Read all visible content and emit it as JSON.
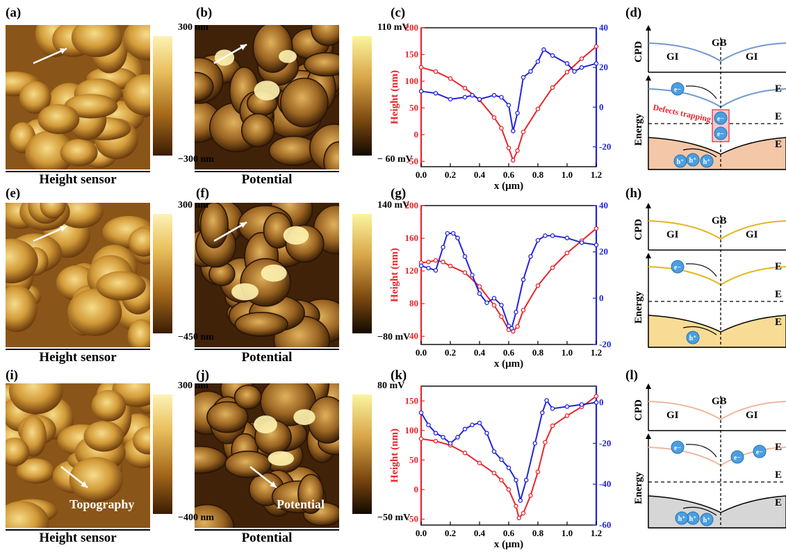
{
  "rows": [
    {
      "afm": {
        "height_letter": "(a)",
        "potential_letter": "(b)",
        "height_top": "300 nm",
        "height_bottom": "−300 nm",
        "potential_top": "110 mV",
        "potential_bottom": "− 60 mV",
        "height_caption": "Height sensor",
        "potential_caption": "Potential",
        "height_annotation": "",
        "potential_annotation": ""
      },
      "chart_letter": "(c)",
      "band_letter": "(d)",
      "band": {
        "cpd_label": "CPD",
        "energy_label": "Energy",
        "gb": "GB",
        "gi_left": "GI",
        "gi_right": "GI",
        "ec": "E",
        "ef": "E",
        "ev": "E",
        "defects": "Defects trapping",
        "electron": "e−",
        "hole": "h⁺",
        "band_color": "#6f98cf",
        "fill": "#f4c7a8"
      }
    },
    {
      "afm": {
        "height_letter": "(e)",
        "potential_letter": "(f)",
        "height_top": "300 nm",
        "height_bottom": "−450 nm",
        "potential_top": "140 mV",
        "potential_bottom": "−80 mV",
        "height_caption": "Height sensor",
        "potential_caption": "Potential",
        "height_annotation": "",
        "potential_annotation": ""
      },
      "chart_letter": "(g)",
      "band_letter": "(h)",
      "band": {
        "cpd_label": "CPD",
        "energy_label": "Energy",
        "gb": "GB",
        "gi_left": "GI",
        "gi_right": "GI",
        "ec": "E",
        "ef": "E",
        "ev": "E",
        "defects": "",
        "electron": "e−",
        "hole": "h⁺",
        "band_color": "#e3b51e",
        "fill": "#f8dc96"
      }
    },
    {
      "afm": {
        "height_letter": "(i)",
        "potential_letter": "(j)",
        "height_top": "300 nm",
        "height_bottom": "−400 nm",
        "potential_top": "80 mV",
        "potential_bottom": "−50 mV",
        "height_caption": "Height sensor",
        "potential_caption": "Potential",
        "height_annotation": "Topography",
        "potential_annotation": "Potential"
      },
      "chart_letter": "(k)",
      "band_letter": "(l)",
      "band": {
        "cpd_label": "CPD",
        "energy_label": "Energy",
        "gb": "GB",
        "gi_left": "GI",
        "gi_right": "GI",
        "ec": "E",
        "ef": "E",
        "ev": "E",
        "defects": "",
        "electron": "e−",
        "hole": "h⁺",
        "band_color": "#f0b79b",
        "fill": "#d6d6d6"
      }
    }
  ],
  "chart_data": [
    {
      "type": "line",
      "xlabel": "x (μm)",
      "ylabel": "Height (nm)",
      "y2label": "CPD (mV)",
      "xlim": [
        0,
        1.2
      ],
      "ylim": [
        -60,
        200
      ],
      "y2lim": [
        -30,
        40
      ],
      "xticks": [
        0.0,
        0.2,
        0.4,
        0.6,
        0.8,
        1.0,
        1.2
      ],
      "yticks": [
        -50,
        0,
        50,
        100,
        150,
        200
      ],
      "y2ticks": [
        -20,
        0,
        20,
        40
      ],
      "series": [
        {
          "axis": "left",
          "color": "#e8242a",
          "x": [
            0,
            0.1,
            0.2,
            0.3,
            0.4,
            0.5,
            0.55,
            0.6,
            0.63,
            0.66,
            0.7,
            0.8,
            0.9,
            1.0,
            1.1,
            1.2
          ],
          "y": [
            126,
            118,
            105,
            87,
            65,
            32,
            12,
            -25,
            -48,
            -30,
            5,
            48,
            88,
            117,
            142,
            165
          ]
        },
        {
          "axis": "right",
          "color": "#2323d8",
          "x": [
            0,
            0.1,
            0.2,
            0.3,
            0.35,
            0.4,
            0.5,
            0.55,
            0.6,
            0.63,
            0.66,
            0.7,
            0.75,
            0.8,
            0.84,
            0.9,
            1.0,
            1.05,
            1.1,
            1.2
          ],
          "y": [
            8,
            7,
            4,
            5,
            6,
            4,
            6,
            5,
            1,
            -12,
            -3,
            15,
            18,
            23,
            29,
            26,
            22,
            18,
            20,
            22
          ]
        }
      ]
    },
    {
      "type": "line",
      "xlabel": "x (μm)",
      "ylabel": "Height (nm)",
      "y2label": "CPD (mV)",
      "xlim": [
        0,
        1.2
      ],
      "ylim": [
        30,
        200
      ],
      "y2lim": [
        -20,
        40
      ],
      "xticks": [
        0.0,
        0.2,
        0.4,
        0.6,
        0.8,
        1.0,
        1.2
      ],
      "yticks": [
        40,
        80,
        120,
        160,
        200
      ],
      "y2ticks": [
        -20,
        0,
        20,
        40
      ],
      "series": [
        {
          "axis": "left",
          "color": "#e8242a",
          "x": [
            0,
            0.05,
            0.1,
            0.15,
            0.2,
            0.3,
            0.4,
            0.5,
            0.55,
            0.6,
            0.63,
            0.66,
            0.7,
            0.8,
            0.9,
            1.0,
            1.1,
            1.2
          ],
          "y": [
            130,
            131,
            133,
            131,
            126,
            118,
            101,
            78,
            64,
            48,
            46,
            52,
            72,
            102,
            124,
            142,
            157,
            172
          ]
        },
        {
          "axis": "right",
          "color": "#2323d8",
          "x": [
            0,
            0.05,
            0.1,
            0.15,
            0.18,
            0.22,
            0.25,
            0.3,
            0.35,
            0.4,
            0.45,
            0.5,
            0.55,
            0.6,
            0.62,
            0.65,
            0.7,
            0.75,
            0.8,
            0.85,
            0.9,
            1.0,
            1.1,
            1.2
          ],
          "y": [
            14,
            13,
            12,
            22,
            28,
            28,
            26,
            18,
            10,
            2,
            -2,
            0,
            -3,
            -12,
            -13,
            -6,
            8,
            18,
            25,
            27,
            27,
            26,
            24,
            23
          ]
        }
      ]
    },
    {
      "type": "line",
      "xlabel": "x (μm)",
      "ylabel": "Height (nm)",
      "y2label": "CPD (mV)",
      "xlim": [
        0,
        1.2
      ],
      "ylim": [
        -60,
        175
      ],
      "y2lim": [
        -60,
        8
      ],
      "xticks": [
        0.0,
        0.2,
        0.4,
        0.6,
        0.8,
        1.0,
        1.2
      ],
      "yticks": [
        -50,
        0,
        50,
        100,
        150
      ],
      "y2ticks": [
        -60,
        -40,
        -20,
        0
      ],
      "series": [
        {
          "axis": "left",
          "color": "#e8242a",
          "x": [
            0,
            0.1,
            0.2,
            0.3,
            0.4,
            0.5,
            0.55,
            0.6,
            0.65,
            0.67,
            0.7,
            0.75,
            0.8,
            0.85,
            0.9,
            1.0,
            1.1,
            1.2
          ],
          "y": [
            86,
            82,
            75,
            62,
            45,
            28,
            16,
            0,
            -28,
            -48,
            -40,
            -10,
            30,
            80,
            108,
            125,
            140,
            158
          ]
        },
        {
          "axis": "right",
          "color": "#2323d8",
          "x": [
            0,
            0.05,
            0.1,
            0.15,
            0.2,
            0.25,
            0.3,
            0.35,
            0.4,
            0.45,
            0.5,
            0.55,
            0.6,
            0.65,
            0.68,
            0.72,
            0.78,
            0.83,
            0.86,
            0.9,
            1.0,
            1.1,
            1.2
          ],
          "y": [
            -5,
            -11,
            -15,
            -17,
            -20,
            -17,
            -13,
            -11,
            -10,
            -15,
            -24,
            -28,
            -32,
            -38,
            -48,
            -38,
            -20,
            -5,
            1,
            -3,
            -2,
            -1,
            0
          ]
        }
      ]
    }
  ]
}
